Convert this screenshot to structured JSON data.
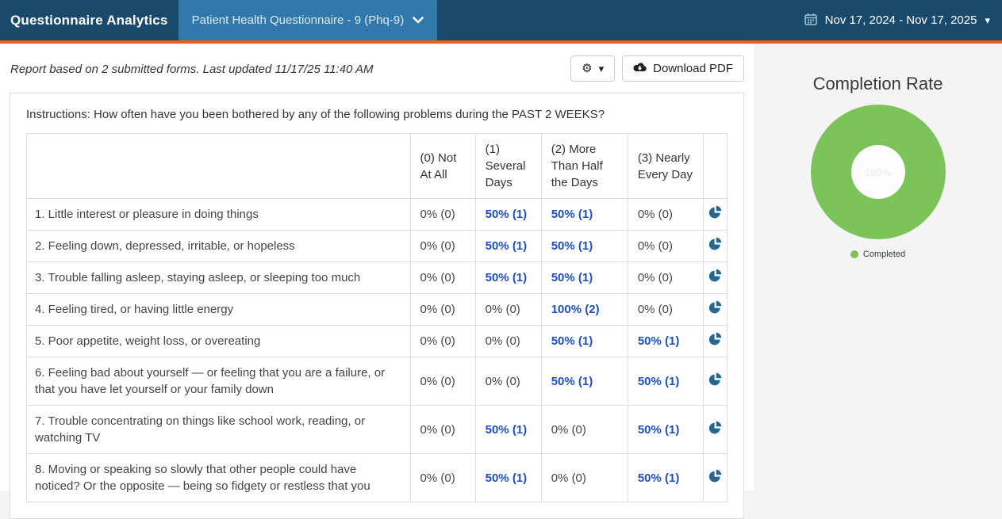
{
  "header": {
    "app_title": "Questionnaire Analytics",
    "questionnaire_selector": "Patient Health Questionnaire - 9 (Phq-9)",
    "date_range": "Nov 17, 2024 - Nov 17, 2025"
  },
  "icons": {
    "gear": "⚙",
    "caret_down": "▾"
  },
  "toolbar": {
    "report_summary": "Report based on 2 submitted forms. Last updated 11/17/25 11:40 AM",
    "download_pdf_label": "Download PDF"
  },
  "table": {
    "instructions": "Instructions: How often have you been bothered by any of the following problems during the PAST 2 WEEKS?",
    "columns": [
      "(0) Not At All",
      "(1) Several Days",
      "(2) More Than Half the Days",
      "(3) Nearly Every Day"
    ],
    "rows": [
      {
        "question": "1. Little interest or pleasure in doing things",
        "values": [
          "0% (0)",
          "50% (1)",
          "50% (1)",
          "0% (0)"
        ]
      },
      {
        "question": "2. Feeling down, depressed, irritable, or hopeless",
        "values": [
          "0% (0)",
          "50% (1)",
          "50% (1)",
          "0% (0)"
        ]
      },
      {
        "question": "3. Trouble falling asleep, staying asleep, or sleeping too much",
        "values": [
          "0% (0)",
          "50% (1)",
          "50% (1)",
          "0% (0)"
        ]
      },
      {
        "question": "4. Feeling tired, or having little energy",
        "values": [
          "0% (0)",
          "0% (0)",
          "100% (2)",
          "0% (0)"
        ]
      },
      {
        "question": "5. Poor appetite, weight loss, or overeating",
        "values": [
          "0% (0)",
          "0% (0)",
          "50% (1)",
          "50% (1)"
        ]
      },
      {
        "question": "6. Feeling bad about yourself — or feeling that you are a failure, or that you have let yourself or your family down",
        "values": [
          "0% (0)",
          "0% (0)",
          "50% (1)",
          "50% (1)"
        ]
      },
      {
        "question": "7. Trouble concentrating on things like school work, reading, or watching TV",
        "values": [
          "0% (0)",
          "50% (1)",
          "0% (0)",
          "50% (1)"
        ]
      },
      {
        "question": "8. Moving or speaking so slowly that other people could have noticed? Or the opposite — being so fidgety or restless that you",
        "values": [
          "0% (0)",
          "50% (1)",
          "0% (0)",
          "50% (1)"
        ]
      }
    ]
  },
  "completion": {
    "title": "Completion Rate",
    "center_label": "100%",
    "legend_label": "Completed"
  },
  "chart_data": {
    "type": "pie",
    "title": "Completion Rate",
    "labels": [
      "Completed"
    ],
    "values": [
      100
    ],
    "center_label": "100%",
    "legend_position": "bottom"
  },
  "colors": {
    "header_bg": "#1a4a6b",
    "selector_bg": "#3279ab",
    "accent_orange": "#e8630d",
    "link_blue": "#1e4fc2",
    "pie_icon_blue": "#27678f",
    "donut_green": "#7cc35a"
  }
}
